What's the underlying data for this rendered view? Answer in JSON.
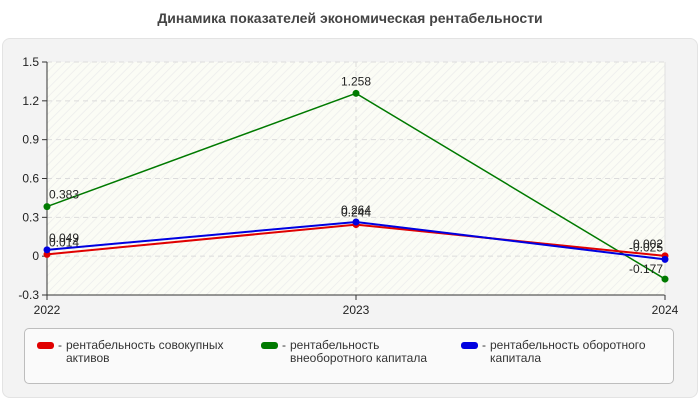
{
  "title": "Динамика показателей экономическая рентабельности",
  "colors": {
    "red": "#e00000",
    "green": "#007a00",
    "blue": "#0000e0",
    "panel_bg": "#f3f3f3",
    "plot_bg": "#fbfcf5",
    "grid": "#dddddd"
  },
  "legend": {
    "items": [
      {
        "label": "рентабельность совокупных активов",
        "color": "#e00000",
        "dash": "-"
      },
      {
        "label": "рентабельность внеоборотного капитала",
        "color": "#007a00",
        "dash": "-"
      },
      {
        "label": "рентабельность оборотного капитала",
        "color": "#0000e0",
        "dash": "-"
      }
    ]
  },
  "chart_data": {
    "type": "line",
    "title": "Динамика показателей экономическая рентабельности",
    "xlabel": "",
    "ylabel": "",
    "categories": [
      "2022",
      "2023",
      "2024"
    ],
    "y_ticks": [
      "1.5",
      "1.2",
      "0.9",
      "0.6",
      "0.3",
      "0",
      "-0.3"
    ],
    "ylim": [
      -0.3,
      1.5
    ],
    "grid": true,
    "legend_position": "bottom",
    "series": [
      {
        "name": "рентабельность совокупных активов",
        "color": "#e00000",
        "values": [
          0.014,
          0.244,
          0.002
        ],
        "labels": [
          "0.014",
          "0.244",
          "0.002"
        ]
      },
      {
        "name": "рентабельность внеоборотного капитала",
        "color": "#007a00",
        "values": [
          0.383,
          1.258,
          -0.177
        ],
        "labels": [
          "0.383",
          "1.258",
          "-0.177"
        ]
      },
      {
        "name": "рентабельность оборотного капитала",
        "color": "#0000e0",
        "values": [
          0.049,
          0.264,
          -0.025
        ],
        "labels": [
          "0.049",
          "0.264",
          "-0.025"
        ]
      }
    ]
  }
}
